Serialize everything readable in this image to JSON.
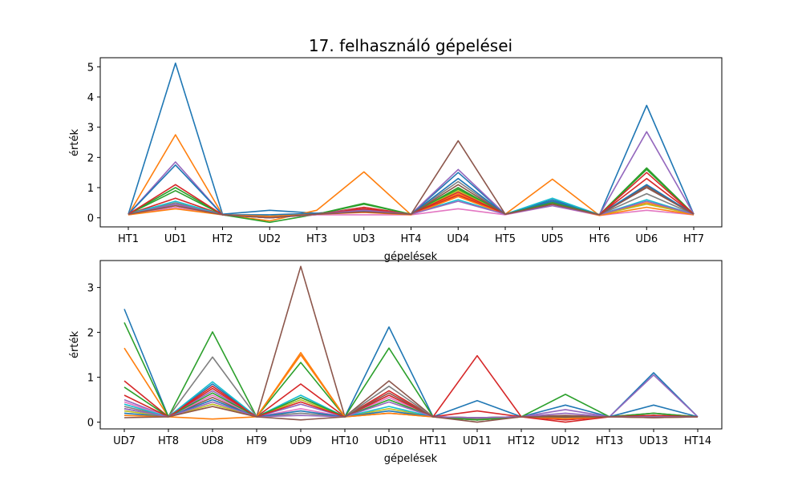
{
  "chart_data": [
    {
      "type": "line",
      "title": "17. felhasználó gépelései",
      "xlabel": "gépelések",
      "ylabel": "érték",
      "categories": [
        "HT1",
        "UD1",
        "HT2",
        "UD2",
        "HT3",
        "UD3",
        "HT4",
        "UD4",
        "HT5",
        "UD5",
        "HT6",
        "UD6",
        "HT7"
      ],
      "ylim": [
        -0.3,
        5.3
      ],
      "yticks": [
        0,
        1,
        2,
        3,
        4,
        5
      ],
      "grid": false,
      "series": [
        {
          "color": "#1f77b4",
          "values": [
            0.12,
            5.12,
            0.12,
            0.25,
            0.15,
            0.28,
            0.12,
            1.5,
            0.12,
            0.6,
            0.1,
            3.72,
            0.12
          ]
        },
        {
          "color": "#ff7f0e",
          "values": [
            0.1,
            2.75,
            0.1,
            -0.1,
            0.25,
            1.52,
            0.1,
            0.8,
            0.12,
            1.28,
            0.08,
            0.5,
            0.1
          ]
        },
        {
          "color": "#2ca02c",
          "values": [
            0.12,
            0.9,
            0.1,
            -0.15,
            0.12,
            0.48,
            0.12,
            0.95,
            0.12,
            0.55,
            0.1,
            1.65,
            0.12
          ]
        },
        {
          "color": "#d62728",
          "values": [
            0.12,
            0.65,
            0.1,
            0.0,
            0.12,
            0.35,
            0.12,
            0.75,
            0.12,
            0.5,
            0.1,
            1.3,
            0.12
          ]
        },
        {
          "color": "#9467bd",
          "values": [
            0.12,
            1.85,
            0.1,
            0.05,
            0.15,
            0.3,
            0.12,
            1.6,
            0.12,
            0.55,
            0.1,
            2.85,
            0.12
          ]
        },
        {
          "color": "#8c564b",
          "values": [
            0.12,
            0.45,
            0.1,
            0.05,
            0.12,
            0.3,
            0.12,
            2.55,
            0.12,
            0.5,
            0.1,
            1.05,
            0.12
          ]
        },
        {
          "color": "#e377c2",
          "values": [
            0.1,
            0.35,
            0.1,
            0.0,
            0.1,
            0.1,
            0.1,
            0.3,
            0.1,
            0.4,
            0.08,
            0.25,
            0.1
          ]
        },
        {
          "color": "#7f7f7f",
          "values": [
            0.12,
            0.5,
            0.1,
            0.05,
            0.12,
            0.25,
            0.12,
            1.2,
            0.12,
            0.5,
            0.1,
            0.8,
            0.12
          ]
        },
        {
          "color": "#bcbd22",
          "values": [
            0.12,
            0.4,
            0.1,
            0.05,
            0.12,
            0.2,
            0.12,
            0.9,
            0.12,
            0.45,
            0.1,
            0.45,
            0.12
          ]
        },
        {
          "color": "#17becf",
          "values": [
            0.12,
            0.55,
            0.1,
            0.05,
            0.12,
            0.22,
            0.12,
            0.6,
            0.12,
            0.65,
            0.1,
            0.6,
            0.12
          ]
        },
        {
          "color": "#1f77b4",
          "values": [
            0.12,
            1.75,
            0.1,
            0.1,
            0.15,
            0.2,
            0.12,
            1.3,
            0.12,
            0.55,
            0.1,
            1.1,
            0.12
          ]
        },
        {
          "color": "#ff7f0e",
          "values": [
            0.1,
            0.3,
            0.1,
            0.05,
            0.12,
            0.18,
            0.1,
            0.7,
            0.12,
            0.45,
            0.08,
            0.35,
            0.1
          ]
        },
        {
          "color": "#2ca02c",
          "values": [
            0.12,
            1.0,
            0.1,
            0.0,
            0.12,
            0.45,
            0.12,
            1.0,
            0.12,
            0.5,
            0.1,
            1.6,
            0.12
          ]
        },
        {
          "color": "#d62728",
          "values": [
            0.12,
            1.1,
            0.1,
            0.0,
            0.12,
            0.3,
            0.12,
            0.85,
            0.12,
            0.45,
            0.1,
            1.5,
            0.12
          ]
        },
        {
          "color": "#9467bd",
          "values": [
            0.12,
            0.45,
            0.1,
            0.0,
            0.12,
            0.25,
            0.12,
            0.55,
            0.12,
            0.4,
            0.1,
            0.55,
            0.12
          ]
        },
        {
          "color": "#8c564b",
          "values": [
            0.12,
            0.4,
            0.1,
            0.0,
            0.12,
            0.2,
            0.12,
            1.1,
            0.12,
            0.45,
            0.1,
            1.0,
            0.12
          ]
        }
      ]
    },
    {
      "type": "line",
      "title": "",
      "xlabel": "gépelések",
      "ylabel": "érték",
      "categories": [
        "UD7",
        "HT8",
        "UD8",
        "HT9",
        "UD9",
        "HT10",
        "UD10",
        "HT11",
        "UD11",
        "HT12",
        "UD12",
        "HT13",
        "UD13",
        "HT14"
      ],
      "ylim": [
        -0.15,
        3.6
      ],
      "yticks": [
        0,
        1,
        2,
        3
      ],
      "grid": false,
      "series": [
        {
          "color": "#1f77b4",
          "values": [
            2.52,
            0.12,
            0.85,
            0.12,
            0.55,
            0.12,
            2.12,
            0.12,
            0.48,
            0.12,
            0.38,
            0.12,
            1.1,
            0.12
          ]
        },
        {
          "color": "#ff7f0e",
          "values": [
            1.65,
            0.12,
            0.07,
            0.12,
            1.55,
            0.12,
            0.2,
            0.12,
            0.08,
            0.12,
            0.1,
            0.12,
            0.12,
            0.12
          ]
        },
        {
          "color": "#2ca02c",
          "values": [
            2.22,
            0.12,
            2.01,
            0.12,
            1.33,
            0.12,
            1.65,
            0.12,
            0.1,
            0.12,
            0.62,
            0.12,
            0.15,
            0.12
          ]
        },
        {
          "color": "#d62728",
          "values": [
            0.92,
            0.12,
            0.8,
            0.12,
            0.85,
            0.12,
            0.7,
            0.12,
            1.48,
            0.12,
            0.05,
            0.12,
            0.15,
            0.12
          ]
        },
        {
          "color": "#9467bd",
          "values": [
            0.5,
            0.12,
            0.7,
            0.12,
            0.4,
            0.12,
            0.6,
            0.12,
            0.1,
            0.12,
            0.28,
            0.12,
            1.05,
            0.12
          ]
        },
        {
          "color": "#8c564b",
          "values": [
            0.3,
            0.12,
            0.55,
            0.12,
            3.47,
            0.12,
            0.92,
            0.12,
            0.1,
            0.12,
            0.15,
            0.12,
            0.2,
            0.12
          ]
        },
        {
          "color": "#e377c2",
          "values": [
            0.45,
            0.12,
            0.6,
            0.12,
            0.3,
            0.12,
            0.55,
            0.12,
            0.05,
            0.12,
            0.08,
            0.12,
            0.1,
            0.12
          ]
        },
        {
          "color": "#7f7f7f",
          "values": [
            0.35,
            0.12,
            1.45,
            0.12,
            0.2,
            0.12,
            0.8,
            0.12,
            0.08,
            0.12,
            0.12,
            0.12,
            0.15,
            0.12
          ]
        },
        {
          "color": "#bcbd22",
          "values": [
            0.25,
            0.12,
            0.4,
            0.12,
            0.5,
            0.12,
            0.3,
            0.12,
            0.05,
            0.12,
            0.1,
            0.12,
            0.12,
            0.12
          ]
        },
        {
          "color": "#17becf",
          "values": [
            0.4,
            0.12,
            0.9,
            0.12,
            0.6,
            0.12,
            0.35,
            0.12,
            0.05,
            0.12,
            0.1,
            0.12,
            0.1,
            0.12
          ]
        },
        {
          "color": "#1f77b4",
          "values": [
            0.2,
            0.12,
            0.5,
            0.12,
            0.25,
            0.12,
            0.25,
            0.12,
            0.05,
            0.12,
            0.1,
            0.12,
            0.38,
            0.12
          ]
        },
        {
          "color": "#ff7f0e",
          "values": [
            0.15,
            0.12,
            0.35,
            0.12,
            1.5,
            0.12,
            0.2,
            0.12,
            0.05,
            0.12,
            0.08,
            0.12,
            0.1,
            0.12
          ]
        },
        {
          "color": "#2ca02c",
          "values": [
            0.78,
            0.12,
            0.65,
            0.12,
            0.55,
            0.12,
            0.5,
            0.12,
            0.05,
            0.12,
            0.12,
            0.12,
            0.2,
            0.12
          ]
        },
        {
          "color": "#d62728",
          "values": [
            0.6,
            0.12,
            0.75,
            0.12,
            0.45,
            0.12,
            0.6,
            0.12,
            0.25,
            0.12,
            0.0,
            0.12,
            0.15,
            0.12
          ]
        },
        {
          "color": "#9467bd",
          "values": [
            0.3,
            0.12,
            0.45,
            0.12,
            0.15,
            0.12,
            0.45,
            0.12,
            0.1,
            0.12,
            0.2,
            0.12,
            0.12,
            0.12
          ]
        },
        {
          "color": "#8c564b",
          "values": [
            0.1,
            0.12,
            0.35,
            0.12,
            0.05,
            0.12,
            0.65,
            0.12,
            0.0,
            0.12,
            0.12,
            0.12,
            0.1,
            0.12
          ]
        }
      ]
    }
  ]
}
